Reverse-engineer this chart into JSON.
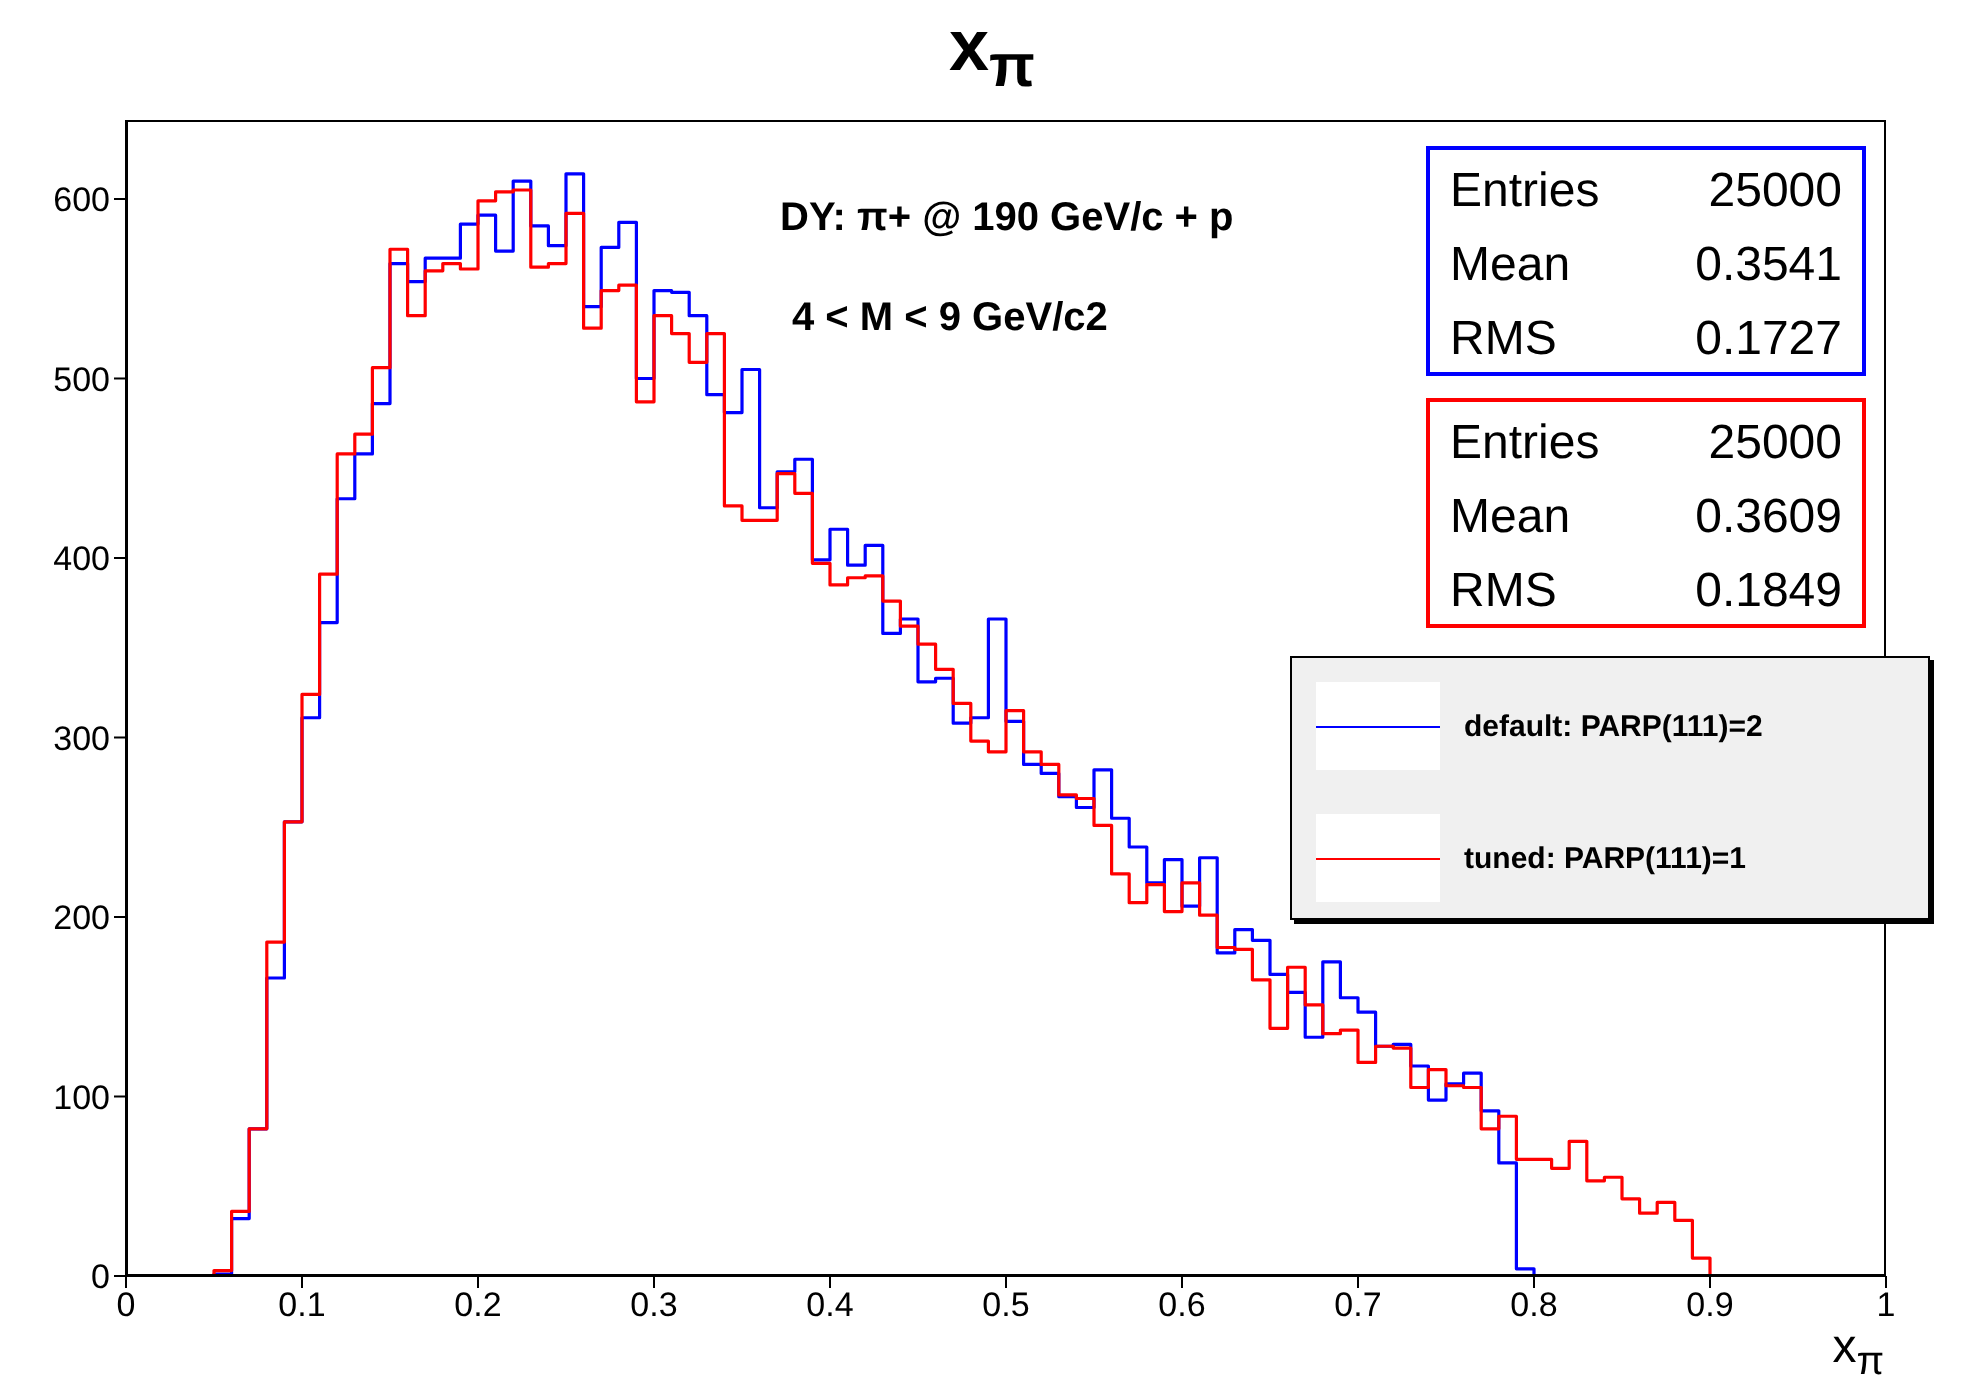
{
  "chart_data": {
    "type": "histogram",
    "title": "x$_{π}$",
    "xlabel": "x$_{π}$",
    "bins": [
      0,
      0.01,
      0.02,
      0.03,
      0.04,
      0.05,
      0.06,
      0.07,
      0.08,
      0.09,
      0.1,
      0.11,
      0.12,
      0.13,
      0.14,
      0.15,
      0.16,
      0.17,
      0.18,
      0.19,
      0.2,
      0.21,
      0.22,
      0.23,
      0.24,
      0.25,
      0.26,
      0.27,
      0.28,
      0.29,
      0.3,
      0.31,
      0.32,
      0.33,
      0.34,
      0.35,
      0.36,
      0.37,
      0.38,
      0.39,
      0.4,
      0.41,
      0.42,
      0.43,
      0.44,
      0.45,
      0.46,
      0.47,
      0.48,
      0.49,
      0.5,
      0.51,
      0.52,
      0.53,
      0.54,
      0.55,
      0.56,
      0.57,
      0.58,
      0.59,
      0.6,
      0.61,
      0.62,
      0.63,
      0.64,
      0.65,
      0.66,
      0.67,
      0.68,
      0.69,
      0.7,
      0.71,
      0.72,
      0.73,
      0.74,
      0.75,
      0.76,
      0.77,
      0.78,
      0.79,
      0.8,
      0.81,
      0.82,
      0.83,
      0.84,
      0.85,
      0.86,
      0.87,
      0.88,
      0.89,
      0.9,
      0.91,
      0.92,
      0.93,
      0.94,
      0.95,
      0.96,
      0.97,
      0.98,
      0.99,
      1
    ],
    "series": [
      {
        "name": "default: PARP(111)=2",
        "color": "#0000ff",
        "values": [
          0,
          0,
          0,
          0,
          0,
          1,
          32,
          82,
          166,
          253,
          311,
          364,
          433,
          458,
          486,
          564,
          554,
          567,
          567,
          586,
          591,
          571,
          610,
          585,
          574,
          614,
          540,
          573,
          587,
          500,
          549,
          548,
          535,
          491,
          481,
          505,
          428,
          448,
          455,
          399,
          416,
          396,
          407,
          358,
          366,
          331,
          333,
          308,
          311,
          366,
          309,
          285,
          280,
          267,
          261,
          282,
          255,
          239,
          219,
          232,
          206,
          233,
          180,
          193,
          187,
          168,
          158,
          133,
          175,
          155,
          147,
          128,
          129,
          117,
          98,
          107,
          113,
          92,
          63,
          4,
          0,
          0,
          0,
          0,
          0,
          0,
          0,
          0,
          0,
          0,
          0,
          0,
          0,
          0,
          0,
          0,
          0,
          0,
          0,
          0
        ]
      },
      {
        "name": "tuned: PARP(111)=1",
        "color": "#ff0000",
        "values": [
          0,
          0,
          0,
          0,
          0,
          3,
          36,
          82,
          186,
          253,
          324,
          391,
          458,
          469,
          506,
          572,
          535,
          560,
          564,
          561,
          599,
          604,
          605,
          562,
          564,
          592,
          528,
          549,
          552,
          487,
          535,
          525,
          509,
          525,
          429,
          421,
          421,
          447,
          436,
          397,
          385,
          389,
          390,
          376,
          362,
          352,
          338,
          319,
          298,
          292,
          315,
          292,
          285,
          268,
          266,
          251,
          224,
          208,
          218,
          203,
          219,
          201,
          183,
          182,
          165,
          138,
          172,
          151,
          135,
          137,
          119,
          128,
          127,
          105,
          115,
          106,
          105,
          82,
          89,
          65,
          65,
          60,
          75,
          53,
          55,
          43,
          35,
          41,
          31,
          10,
          0,
          0,
          0,
          0,
          0,
          0,
          0,
          0,
          0,
          0
        ]
      }
    ],
    "xlim": [
      0,
      1
    ],
    "ylim": [
      0,
      644
    ],
    "xticks": [
      0,
      0.1,
      0.2,
      0.3,
      0.4,
      0.5,
      0.6,
      0.7,
      0.8,
      0.9,
      1
    ],
    "yticks": [
      0,
      100,
      200,
      300,
      400,
      500,
      600
    ],
    "annotations": [
      "DY: π+ @ 190 GeV/c + p",
      "4 < M < 9 GeV/c2",
      "Entries",
      "25000",
      "Mean",
      "0.3541",
      "RMS",
      "0.1727",
      "Entries",
      "25000",
      "Mean",
      "0.3609",
      "RMS",
      "0.1849"
    ],
    "legend": "right",
    "grid": false,
    "line_style": "solid",
    "marker": "none"
  }
}
